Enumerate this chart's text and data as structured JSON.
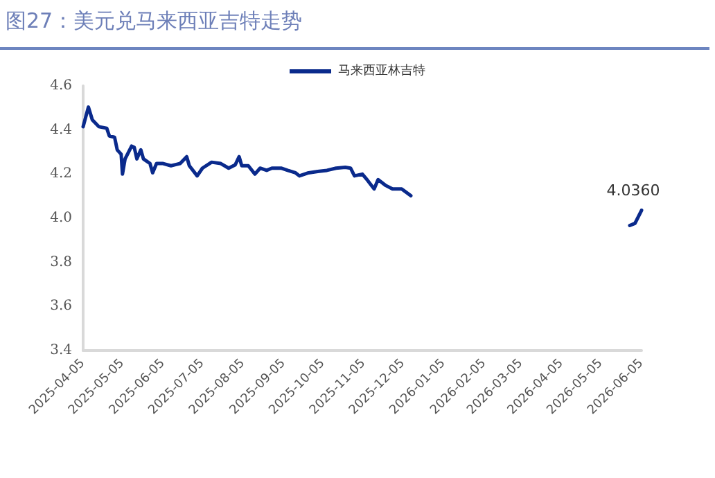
{
  "chart_data": {
    "type": "line",
    "title": "图27：美元兑马来西亚吉特走势",
    "x": [
      "2025-04-05",
      "2025-04-09",
      "2025-04-12",
      "2025-04-17",
      "2025-04-23",
      "2025-04-25",
      "2025-04-29",
      "2025-05-01",
      "2025-05-04",
      "2025-05-05",
      "2025-05-07",
      "2025-05-12",
      "2025-05-14",
      "2025-05-16",
      "2025-05-19",
      "2025-05-21",
      "2025-05-26",
      "2025-05-28",
      "2025-05-31",
      "2025-06-05",
      "2025-06-11",
      "2025-06-18",
      "2025-06-23",
      "2025-06-25",
      "2025-07-01",
      "2025-07-05",
      "2025-07-12",
      "2025-07-19",
      "2025-07-25",
      "2025-07-30",
      "2025-08-02",
      "2025-08-04",
      "2025-08-09",
      "2025-08-14",
      "2025-08-18",
      "2025-08-23",
      "2025-08-27",
      "2025-09-03",
      "2025-09-08",
      "2025-09-14",
      "2025-09-17",
      "2025-09-24",
      "2025-10-01",
      "2025-10-08",
      "2025-10-15",
      "2025-10-22",
      "2025-10-26",
      "2025-10-29",
      "2025-11-04",
      "2025-11-07",
      "2025-11-13",
      "2025-11-16",
      "2025-11-22",
      "2025-11-27",
      "2025-12-04",
      "2025-12-11",
      "2026-01-15",
      "2026-05-27",
      "2026-05-31",
      "2026-06-05"
    ],
    "series": [
      {
        "name": "马来西亚林吉特",
        "color": "#0a2a8c",
        "values": [
          4.415,
          4.504,
          4.446,
          4.415,
          4.408,
          4.373,
          4.367,
          4.31,
          4.29,
          4.2,
          4.269,
          4.327,
          4.321,
          4.269,
          4.31,
          4.269,
          4.248,
          4.206,
          4.248,
          4.248,
          4.238,
          4.248,
          4.279,
          4.238,
          4.192,
          4.227,
          4.254,
          4.248,
          4.227,
          4.242,
          4.279,
          4.238,
          4.238,
          4.2,
          4.227,
          4.217,
          4.227,
          4.227,
          4.217,
          4.206,
          4.192,
          4.206,
          4.212,
          4.217,
          4.227,
          4.231,
          4.227,
          4.192,
          4.2,
          4.179,
          4.133,
          4.175,
          4.148,
          4.133,
          4.133,
          4.102,
          null,
          3.967,
          3.977,
          4.036
        ],
        "value_labels": [
          null,
          null,
          null,
          null,
          null,
          null,
          null,
          null,
          null,
          null,
          null,
          null,
          null,
          null,
          null,
          null,
          null,
          null,
          null,
          null,
          null,
          null,
          null,
          null,
          null,
          null,
          null,
          null,
          null,
          null,
          null,
          null,
          null,
          null,
          null,
          null,
          null,
          null,
          null,
          null,
          null,
          null,
          null,
          null,
          null,
          null,
          null,
          null,
          null,
          null,
          null,
          null,
          null,
          null,
          null,
          null,
          null,
          null,
          null,
          "4.0360"
        ]
      }
    ],
    "xlim": [
      "2025-04-05",
      "2026-06-05"
    ],
    "xticks": [
      "2025-04-05",
      "2025-05-05",
      "2025-06-05",
      "2025-07-05",
      "2025-08-05",
      "2025-09-05",
      "2025-10-05",
      "2025-11-05",
      "2025-12-05",
      "2026-01-05",
      "2026-02-05",
      "2026-03-05",
      "2026-04-05",
      "2026-05-05",
      "2026-06-05"
    ],
    "ylim": [
      3.4,
      4.6
    ],
    "yticks": [
      {
        "value": 3.4,
        "label": "3.4"
      },
      {
        "value": 3.6,
        "label": "3.6"
      },
      {
        "value": 3.8,
        "label": "3.8"
      },
      {
        "value": 4,
        "label": "4.0"
      },
      {
        "value": 4.2,
        "label": "4.2"
      },
      {
        "value": 4.4,
        "label": "4.4"
      },
      {
        "value": 4.6,
        "label": "4.6"
      }
    ],
    "grid": false,
    "legend": "top",
    "marker": "none",
    "line_style": "solid"
  }
}
